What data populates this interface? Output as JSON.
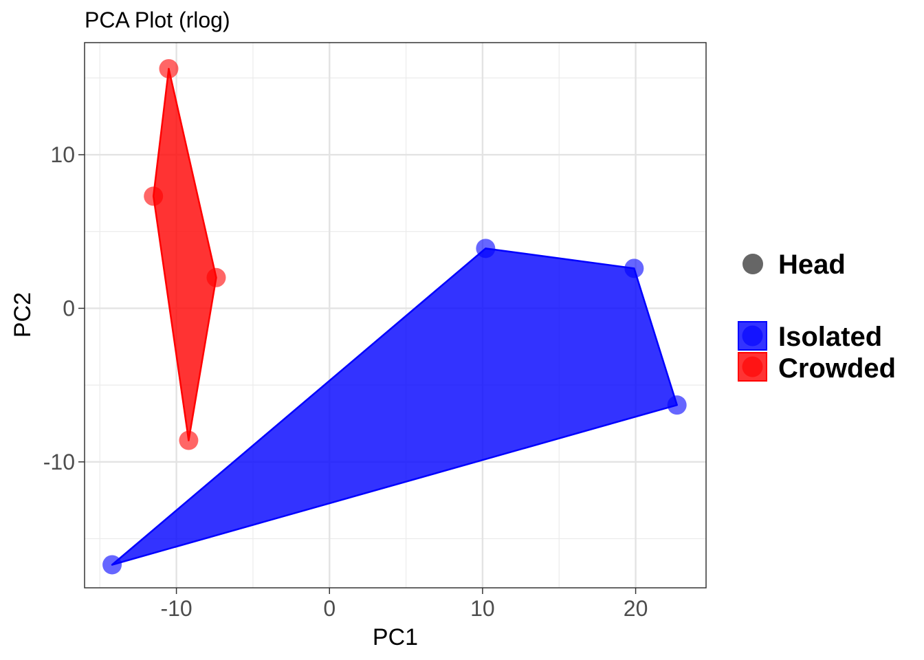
{
  "chart_data": {
    "type": "scatter",
    "title": "PCA Plot (rlog)",
    "xlabel": "PC1",
    "ylabel": "PC2",
    "xlim": [
      -16,
      24.6
    ],
    "ylim": [
      -18.2,
      17.3
    ],
    "x_ticks": [
      -10,
      0,
      10,
      20
    ],
    "y_ticks": [
      -10,
      0,
      10
    ],
    "x_tick_labels": [
      "-10",
      "0",
      "10",
      "20"
    ],
    "y_tick_labels": [
      "-10",
      "0",
      "10"
    ],
    "grid": true,
    "legend_position": "right",
    "shape_legend": {
      "label": "Head",
      "color": "#666666"
    },
    "series": [
      {
        "name": "Isolated",
        "color": "#0000ff",
        "points": [
          {
            "x": -14.2,
            "y": -16.7
          },
          {
            "x": 10.2,
            "y": 3.9
          },
          {
            "x": 19.9,
            "y": 2.6
          },
          {
            "x": 22.7,
            "y": -6.3
          }
        ],
        "hull": [
          {
            "x": -14.2,
            "y": -16.7
          },
          {
            "x": 10.2,
            "y": 3.9
          },
          {
            "x": 19.9,
            "y": 2.6
          },
          {
            "x": 22.7,
            "y": -6.3
          }
        ]
      },
      {
        "name": "Crowded",
        "color": "#ff0000",
        "points": [
          {
            "x": -10.5,
            "y": 15.6
          },
          {
            "x": -11.5,
            "y": 7.3
          },
          {
            "x": -7.4,
            "y": 2.0
          },
          {
            "x": -9.2,
            "y": -8.6
          }
        ],
        "hull": [
          {
            "x": -10.5,
            "y": 15.6
          },
          {
            "x": -7.4,
            "y": 2.0
          },
          {
            "x": -9.2,
            "y": -8.6
          },
          {
            "x": -11.5,
            "y": 7.3
          }
        ]
      }
    ]
  }
}
